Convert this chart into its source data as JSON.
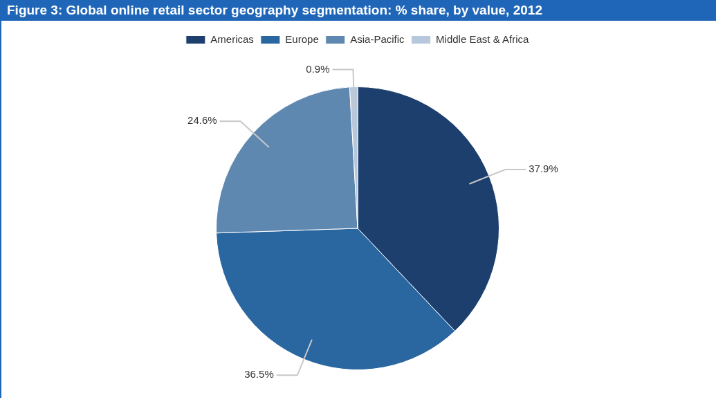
{
  "chart_data": {
    "type": "pie",
    "title": "Figure 3: Global online retail sector geography segmentation: % share, by value, 2012",
    "categories": [
      "Americas",
      "Europe",
      "Asia-Pacific",
      "Middle East & Africa"
    ],
    "values": [
      37.9,
      36.5,
      24.6,
      0.9
    ],
    "value_labels": [
      "37.9%",
      "36.5%",
      "24.6%",
      "0.9%"
    ],
    "colors": [
      "#1c3f6e",
      "#2a66a0",
      "#5f88b0",
      "#b8c8dc"
    ],
    "legend": "top"
  }
}
